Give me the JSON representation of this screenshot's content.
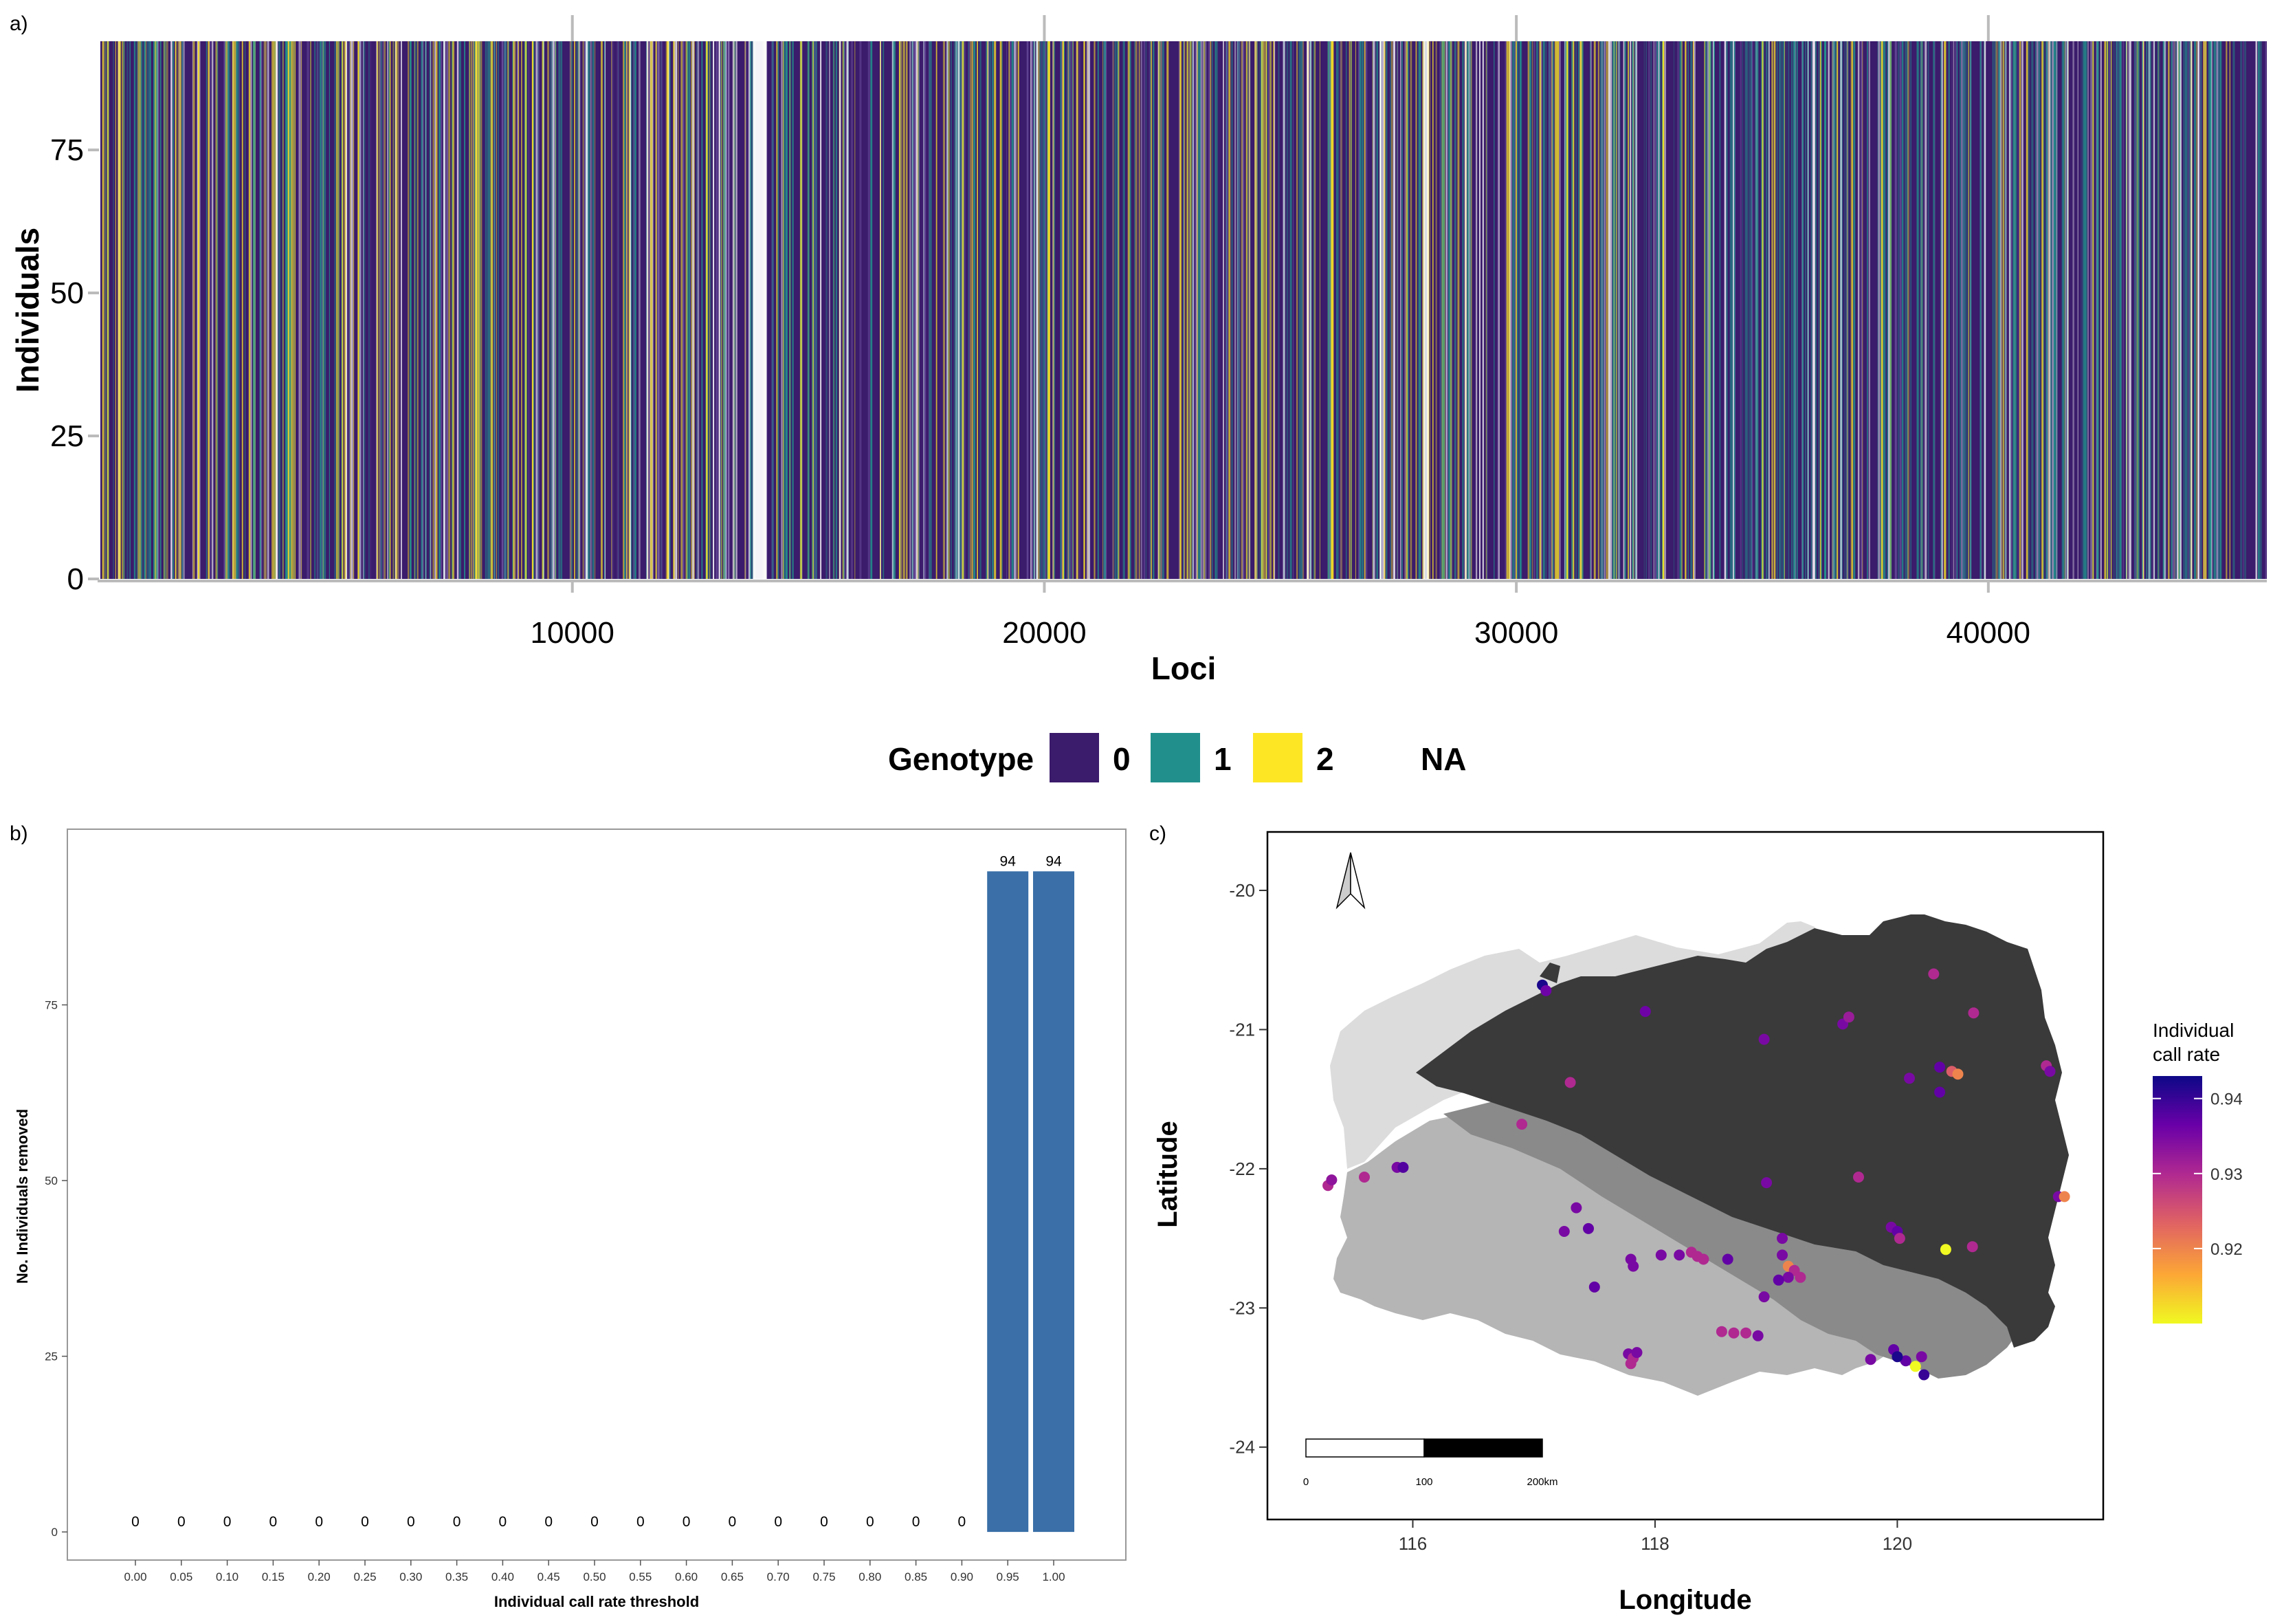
{
  "panels": {
    "a": {
      "tag": "a)"
    },
    "b": {
      "tag": "b)"
    },
    "c": {
      "tag": "c)"
    }
  },
  "colors": {
    "genotype_0": "#3b1b6b",
    "genotype_1": "#21908c",
    "genotype_2": "#fde725",
    "na": "#ffffff",
    "bar": "#3a6fa8",
    "land_dark": "#3a3a3a",
    "land_mid": "#8a8a8a",
    "land_light": "#b5b5b5",
    "land_pale": "#dcdcdc"
  },
  "legend": {
    "title": "Genotype",
    "entries": [
      {
        "label": "0",
        "color": "#3b1b6b"
      },
      {
        "label": "1",
        "color": "#21908c"
      },
      {
        "label": "2",
        "color": "#fde725"
      },
      {
        "label": "NA",
        "color": "#ffffff"
      }
    ]
  },
  "chart_data": [
    {
      "id": "a",
      "type": "heatmap",
      "xlabel": "Loci",
      "ylabel": "Individuals",
      "xlim": [
        0,
        45900
      ],
      "ylim": [
        0,
        94
      ],
      "xticks": [
        10000,
        20000,
        30000,
        40000
      ],
      "yticks": [
        0,
        25,
        50,
        75
      ],
      "categories": [
        "0",
        "1",
        "2",
        "NA"
      ],
      "gaps_loci": [
        14000,
        28100
      ]
    },
    {
      "id": "b",
      "type": "bar",
      "xlabel": "Individual call rate threshold",
      "ylabel": "No. Individuals removed",
      "categories": [
        "0.00",
        "0.05",
        "0.10",
        "0.15",
        "0.20",
        "0.25",
        "0.30",
        "0.35",
        "0.40",
        "0.45",
        "0.50",
        "0.55",
        "0.60",
        "0.65",
        "0.70",
        "0.75",
        "0.80",
        "0.85",
        "0.90",
        "0.95",
        "1.00"
      ],
      "values": [
        0,
        0,
        0,
        0,
        0,
        0,
        0,
        0,
        0,
        0,
        0,
        0,
        0,
        0,
        0,
        0,
        0,
        0,
        0,
        94,
        94
      ],
      "value_labels": [
        "0",
        "0",
        "0",
        "0",
        "0",
        "0",
        "0",
        "0",
        "0",
        "0",
        "0",
        "0",
        "0",
        "0",
        "0",
        "0",
        "0",
        "0",
        "0",
        "94",
        "94"
      ],
      "ylim": [
        -4,
        100
      ],
      "yticks": [
        0,
        25,
        50,
        75
      ]
    },
    {
      "id": "c",
      "type": "scatter",
      "xlabel": "Longitude",
      "ylabel": "Latitude",
      "xlim": [
        114.8,
        121.7
      ],
      "ylim": [
        -24.52,
        -19.58
      ],
      "xticks": [
        116,
        118,
        120
      ],
      "yticks": [
        -20,
        -21,
        -22,
        -23,
        -24
      ],
      "colorbar": {
        "title_lines": [
          "Individual",
          "call rate"
        ],
        "range": [
          0.91,
          0.943
        ],
        "ticks": [
          "0.92",
          "0.93",
          "0.94"
        ],
        "tick_values": [
          0.92,
          0.93,
          0.94
        ]
      },
      "scale_bar": {
        "labels": [
          "0",
          "100",
          "200km"
        ]
      },
      "points": [
        {
          "x": 117.07,
          "y": -20.68,
          "v": 0.942
        },
        {
          "x": 117.1,
          "y": -20.72,
          "v": 0.936
        },
        {
          "x": 117.92,
          "y": -20.87,
          "v": 0.936
        },
        {
          "x": 117.3,
          "y": -21.38,
          "v": 0.93
        },
        {
          "x": 116.9,
          "y": -21.68,
          "v": 0.93
        },
        {
          "x": 115.3,
          "y": -22.12,
          "v": 0.93
        },
        {
          "x": 115.33,
          "y": -22.08,
          "v": 0.933
        },
        {
          "x": 115.6,
          "y": -22.06,
          "v": 0.93
        },
        {
          "x": 115.87,
          "y": -21.99,
          "v": 0.935
        },
        {
          "x": 115.92,
          "y": -21.99,
          "v": 0.938
        },
        {
          "x": 118.9,
          "y": -21.07,
          "v": 0.935
        },
        {
          "x": 119.55,
          "y": -20.96,
          "v": 0.935
        },
        {
          "x": 119.6,
          "y": -20.91,
          "v": 0.932
        },
        {
          "x": 120.3,
          "y": -20.6,
          "v": 0.93
        },
        {
          "x": 120.63,
          "y": -20.88,
          "v": 0.93
        },
        {
          "x": 120.35,
          "y": -21.27,
          "v": 0.937
        },
        {
          "x": 120.45,
          "y": -21.3,
          "v": 0.924
        },
        {
          "x": 120.5,
          "y": -21.32,
          "v": 0.92
        },
        {
          "x": 120.1,
          "y": -21.35,
          "v": 0.935
        },
        {
          "x": 120.35,
          "y": -21.45,
          "v": 0.937
        },
        {
          "x": 121.23,
          "y": -21.26,
          "v": 0.93
        },
        {
          "x": 121.26,
          "y": -21.3,
          "v": 0.935
        },
        {
          "x": 121.33,
          "y": -22.2,
          "v": 0.935
        },
        {
          "x": 121.38,
          "y": -22.2,
          "v": 0.92
        },
        {
          "x": 118.92,
          "y": -22.1,
          "v": 0.935
        },
        {
          "x": 119.68,
          "y": -22.06,
          "v": 0.93
        },
        {
          "x": 119.95,
          "y": -22.42,
          "v": 0.935
        },
        {
          "x": 120.0,
          "y": -22.45,
          "v": 0.937
        },
        {
          "x": 120.02,
          "y": -22.5,
          "v": 0.93
        },
        {
          "x": 120.4,
          "y": -22.58,
          "v": 0.91
        },
        {
          "x": 120.62,
          "y": -22.56,
          "v": 0.93
        },
        {
          "x": 117.35,
          "y": -22.28,
          "v": 0.935
        },
        {
          "x": 117.25,
          "y": -22.45,
          "v": 0.935
        },
        {
          "x": 117.45,
          "y": -22.43,
          "v": 0.937
        },
        {
          "x": 117.8,
          "y": -22.65,
          "v": 0.935
        },
        {
          "x": 117.82,
          "y": -22.7,
          "v": 0.935
        },
        {
          "x": 117.5,
          "y": -22.85,
          "v": 0.937
        },
        {
          "x": 118.05,
          "y": -22.62,
          "v": 0.935
        },
        {
          "x": 118.2,
          "y": -22.62,
          "v": 0.935
        },
        {
          "x": 118.3,
          "y": -22.6,
          "v": 0.93
        },
        {
          "x": 118.35,
          "y": -22.63,
          "v": 0.93
        },
        {
          "x": 118.4,
          "y": -22.65,
          "v": 0.93
        },
        {
          "x": 118.6,
          "y": -22.65,
          "v": 0.937
        },
        {
          "x": 119.05,
          "y": -22.5,
          "v": 0.935
        },
        {
          "x": 119.05,
          "y": -22.62,
          "v": 0.935
        },
        {
          "x": 119.1,
          "y": -22.7,
          "v": 0.92
        },
        {
          "x": 119.15,
          "y": -22.73,
          "v": 0.93
        },
        {
          "x": 119.1,
          "y": -22.78,
          "v": 0.935
        },
        {
          "x": 119.02,
          "y": -22.8,
          "v": 0.937
        },
        {
          "x": 119.2,
          "y": -22.78,
          "v": 0.93
        },
        {
          "x": 118.9,
          "y": -22.92,
          "v": 0.935
        },
        {
          "x": 117.78,
          "y": -23.33,
          "v": 0.935
        },
        {
          "x": 117.82,
          "y": -23.36,
          "v": 0.93
        },
        {
          "x": 117.85,
          "y": -23.32,
          "v": 0.935
        },
        {
          "x": 117.8,
          "y": -23.4,
          "v": 0.93
        },
        {
          "x": 118.55,
          "y": -23.17,
          "v": 0.93
        },
        {
          "x": 118.65,
          "y": -23.18,
          "v": 0.93
        },
        {
          "x": 118.75,
          "y": -23.18,
          "v": 0.93
        },
        {
          "x": 118.85,
          "y": -23.2,
          "v": 0.935
        },
        {
          "x": 119.78,
          "y": -23.37,
          "v": 0.935
        },
        {
          "x": 119.97,
          "y": -23.3,
          "v": 0.937
        },
        {
          "x": 120.07,
          "y": -23.38,
          "v": 0.937
        },
        {
          "x": 120.0,
          "y": -23.35,
          "v": 0.942
        },
        {
          "x": 120.15,
          "y": -23.42,
          "v": 0.91
        },
        {
          "x": 120.2,
          "y": -23.35,
          "v": 0.935
        },
        {
          "x": 120.22,
          "y": -23.48,
          "v": 0.94
        }
      ]
    }
  ]
}
